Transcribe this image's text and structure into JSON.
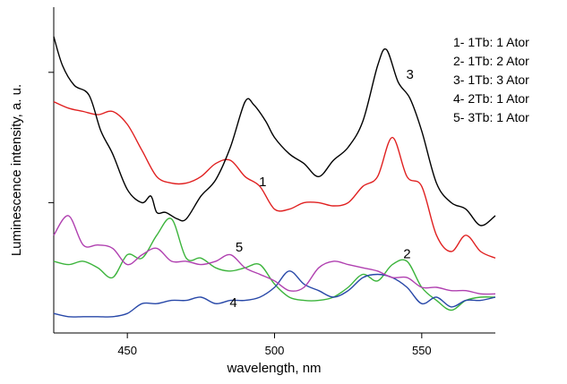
{
  "chart_data": {
    "type": "line",
    "title": "",
    "xlabel": "wavelength, nm",
    "ylabel": "Luminescence intensity, a. u.",
    "xlim": [
      425,
      575
    ],
    "ylim": [
      0,
      1
    ],
    "x_ticks": [
      450,
      500,
      550
    ],
    "x_tick_labels": [
      "450",
      "500",
      "550"
    ],
    "y_ticks_unlabeled": [
      0.4,
      0.8
    ],
    "grid": false,
    "legend_position": "top-right",
    "legend": [
      "1- 1Tb:  1 Ator",
      "2- 1Tb:  2 Ator",
      "3- 1Tb:  3 Ator",
      "4- 2Tb:  1 Ator",
      "5- 3Tb:  1 Ator"
    ],
    "series": [
      {
        "label": "1",
        "color": "#e02020",
        "x": [
          425,
          430,
          435,
          440,
          445,
          450,
          455,
          460,
          465,
          470,
          475,
          480,
          485,
          490,
          495,
          500,
          505,
          510,
          515,
          520,
          525,
          530,
          535,
          540,
          545,
          550,
          555,
          560,
          565,
          570,
          575
        ],
        "y": [
          0.71,
          0.69,
          0.68,
          0.67,
          0.68,
          0.64,
          0.56,
          0.48,
          0.46,
          0.46,
          0.48,
          0.52,
          0.53,
          0.48,
          0.45,
          0.38,
          0.38,
          0.4,
          0.4,
          0.39,
          0.4,
          0.45,
          0.48,
          0.6,
          0.48,
          0.45,
          0.3,
          0.25,
          0.3,
          0.25,
          0.23
        ]
      },
      {
        "label": "2",
        "color": "#3cb43c",
        "x": [
          425,
          430,
          435,
          440,
          445,
          450,
          455,
          460,
          465,
          470,
          475,
          480,
          485,
          490,
          495,
          500,
          505,
          510,
          515,
          520,
          525,
          530,
          535,
          540,
          545,
          550,
          555,
          560,
          565,
          570,
          575
        ],
        "y": [
          0.22,
          0.21,
          0.22,
          0.2,
          0.17,
          0.24,
          0.23,
          0.3,
          0.35,
          0.23,
          0.23,
          0.2,
          0.19,
          0.2,
          0.21,
          0.15,
          0.11,
          0.1,
          0.1,
          0.11,
          0.14,
          0.18,
          0.16,
          0.21,
          0.22,
          0.14,
          0.1,
          0.07,
          0.1,
          0.11,
          0.11
        ]
      },
      {
        "label": "3",
        "color": "#000000",
        "x": [
          425,
          428,
          432,
          437,
          441,
          445,
          450,
          455,
          458,
          460,
          463,
          467,
          470,
          475,
          480,
          485,
          490,
          493,
          497,
          500,
          505,
          510,
          515,
          520,
          525,
          530,
          535,
          538,
          542,
          546,
          550,
          555,
          560,
          565,
          570,
          575
        ],
        "y": [
          0.91,
          0.82,
          0.76,
          0.73,
          0.62,
          0.55,
          0.44,
          0.4,
          0.42,
          0.37,
          0.37,
          0.35,
          0.35,
          0.42,
          0.47,
          0.57,
          0.71,
          0.7,
          0.65,
          0.6,
          0.55,
          0.52,
          0.48,
          0.53,
          0.57,
          0.65,
          0.82,
          0.87,
          0.77,
          0.72,
          0.62,
          0.46,
          0.4,
          0.38,
          0.33,
          0.36
        ]
      },
      {
        "label": "4",
        "color": "#2848a8",
        "x": [
          425,
          430,
          435,
          440,
          445,
          450,
          455,
          460,
          465,
          470,
          475,
          480,
          485,
          490,
          495,
          500,
          505,
          510,
          515,
          520,
          525,
          530,
          535,
          540,
          545,
          550,
          555,
          560,
          565,
          570,
          575
        ],
        "y": [
          0.06,
          0.05,
          0.05,
          0.05,
          0.05,
          0.06,
          0.09,
          0.09,
          0.1,
          0.1,
          0.11,
          0.09,
          0.1,
          0.1,
          0.11,
          0.14,
          0.19,
          0.15,
          0.13,
          0.11,
          0.13,
          0.17,
          0.18,
          0.17,
          0.14,
          0.09,
          0.11,
          0.08,
          0.1,
          0.1,
          0.11
        ]
      },
      {
        "label": "5",
        "color": "#b040b0",
        "x": [
          425,
          430,
          435,
          440,
          445,
          450,
          455,
          460,
          465,
          470,
          475,
          480,
          485,
          490,
          495,
          500,
          505,
          510,
          515,
          520,
          525,
          530,
          535,
          540,
          545,
          550,
          555,
          560,
          565,
          570,
          575
        ],
        "y": [
          0.3,
          0.36,
          0.27,
          0.27,
          0.26,
          0.21,
          0.24,
          0.26,
          0.22,
          0.22,
          0.21,
          0.22,
          0.24,
          0.2,
          0.18,
          0.16,
          0.13,
          0.14,
          0.2,
          0.22,
          0.21,
          0.2,
          0.19,
          0.17,
          0.17,
          0.14,
          0.14,
          0.13,
          0.13,
          0.12,
          0.12
        ]
      }
    ]
  }
}
